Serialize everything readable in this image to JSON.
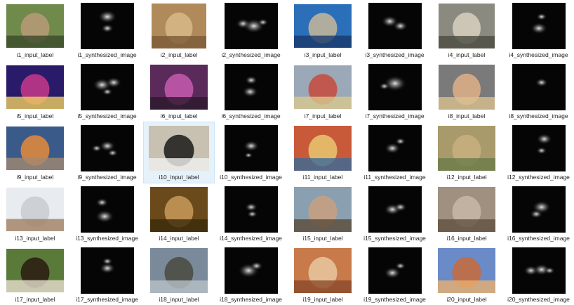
{
  "items": [
    {
      "label": "i1_input_label",
      "kind": "photo",
      "colors": [
        "#6f8a4a",
        "#b89a78",
        "#3b4a2a"
      ]
    },
    {
      "label": "i1_synthesized_image",
      "kind": "synth"
    },
    {
      "label": "i2_input_label",
      "kind": "photo",
      "colors": [
        "#b08a5a",
        "#d8b888",
        "#7a5a36"
      ]
    },
    {
      "label": "i2_synthesized_image",
      "kind": "synth"
    },
    {
      "label": "i3_input_label",
      "kind": "photo",
      "colors": [
        "#2b6fb8",
        "#c8b89a",
        "#1a3a6a"
      ]
    },
    {
      "label": "i3_synthesized_image",
      "kind": "synth"
    },
    {
      "label": "i4_input_label",
      "kind": "photo",
      "colors": [
        "#8a8a80",
        "#d8d0c0",
        "#4a4a40"
      ]
    },
    {
      "label": "i4_synthesized_image",
      "kind": "synth"
    },
    {
      "label": "i5_input_label",
      "kind": "photo",
      "colors": [
        "#2a1a6a",
        "#c83a8a",
        "#f0d060"
      ]
    },
    {
      "label": "i5_synthesized_image",
      "kind": "synth"
    },
    {
      "label": "i6_input_label",
      "kind": "photo",
      "colors": [
        "#5a2a5a",
        "#c85ab0",
        "#2a1a2a"
      ]
    },
    {
      "label": "i6_synthesized_image",
      "kind": "synth"
    },
    {
      "label": "i7_input_label",
      "kind": "photo",
      "colors": [
        "#9aa8b8",
        "#c84a3a",
        "#d8c890"
      ]
    },
    {
      "label": "i7_synthesized_image",
      "kind": "synth"
    },
    {
      "label": "i8_input_label",
      "kind": "photo",
      "colors": [
        "#7a7a7a",
        "#e0b088",
        "#d8c090"
      ]
    },
    {
      "label": "i8_synthesized_image",
      "kind": "synth"
    },
    {
      "label": "i9_input_label",
      "kind": "photo",
      "colors": [
        "#3a5a8a",
        "#e88a3a",
        "#a08870"
      ]
    },
    {
      "label": "i9_synthesized_image",
      "kind": "synth"
    },
    {
      "label": "i10_input_label",
      "kind": "photo",
      "colors": [
        "#c8c0b0",
        "#1a1a1a",
        "#f0f0f0"
      ]
    },
    {
      "label": "i10_synthesized_image",
      "kind": "synth"
    },
    {
      "label": "i11_input_label",
      "kind": "photo",
      "colors": [
        "#c85a3a",
        "#e8c870",
        "#3a6a9a"
      ]
    },
    {
      "label": "i11_synthesized_image",
      "kind": "synth"
    },
    {
      "label": "i12_input_label",
      "kind": "photo",
      "colors": [
        "#a89a6a",
        "#c8b080",
        "#6a7a4a"
      ]
    },
    {
      "label": "i12_synthesized_image",
      "kind": "synth"
    },
    {
      "label": "i13_input_label",
      "kind": "photo",
      "colors": [
        "#e8ecf0",
        "#c8ccd0",
        "#a08060"
      ]
    },
    {
      "label": "i13_synthesized_image",
      "kind": "synth"
    },
    {
      "label": "i14_input_label",
      "kind": "photo",
      "colors": [
        "#6a4a1a",
        "#c89a5a",
        "#3a2a0a"
      ]
    },
    {
      "label": "i14_synthesized_image",
      "kind": "synth"
    },
    {
      "label": "i15_input_label",
      "kind": "photo",
      "colors": [
        "#8aa0b0",
        "#c8a080",
        "#5a4a3a"
      ]
    },
    {
      "label": "i15_synthesized_image",
      "kind": "synth"
    },
    {
      "label": "i16_input_label",
      "kind": "photo",
      "colors": [
        "#a09080",
        "#c8b8a8",
        "#605040"
      ]
    },
    {
      "label": "i16_synthesized_image",
      "kind": "synth"
    },
    {
      "label": "i17_input_label",
      "kind": "photo",
      "colors": [
        "#5a7a3a",
        "#2a1a10",
        "#e8e0d0"
      ]
    },
    {
      "label": "i17_synthesized_image",
      "kind": "synth"
    },
    {
      "label": "i18_input_label",
      "kind": "photo",
      "colors": [
        "#7a8a9a",
        "#4a4a40",
        "#b8c0c8"
      ]
    },
    {
      "label": "i18_synthesized_image",
      "kind": "synth"
    },
    {
      "label": "i19_input_label",
      "kind": "photo",
      "colors": [
        "#c87a4a",
        "#e8c8a0",
        "#8a4a2a"
      ]
    },
    {
      "label": "i19_synthesized_image",
      "kind": "synth"
    },
    {
      "label": "i20_input_label",
      "kind": "photo",
      "colors": [
        "#6a8ac8",
        "#c86a3a",
        "#e8b070"
      ]
    },
    {
      "label": "i20_synthesized_image",
      "kind": "synth"
    }
  ],
  "selected_label": "i10_input_label"
}
